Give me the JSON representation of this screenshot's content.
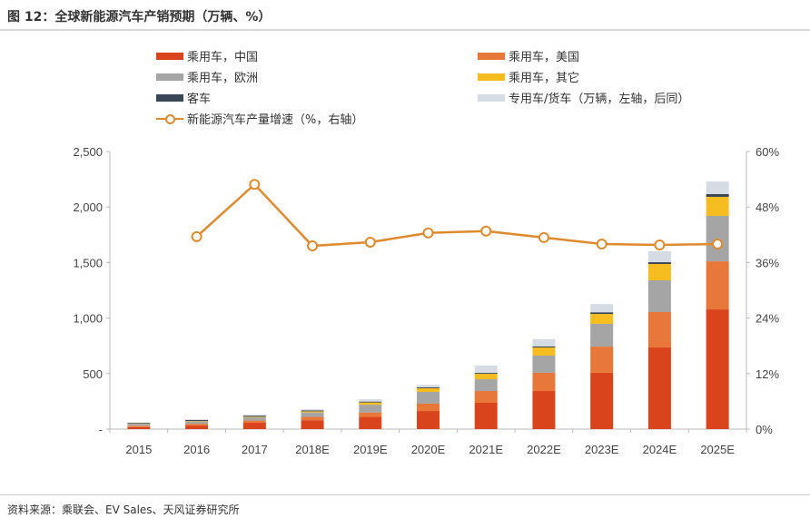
{
  "title": "图 12：全球新能源汽车产销预期（万辆、%）",
  "source": "资料来源：乘联会、EV Sales、天风证券研究所",
  "chart_data": {
    "type": "bar",
    "stacked": true,
    "categories": [
      "2015",
      "2016",
      "2017",
      "2018E",
      "2019E",
      "2020E",
      "2021E",
      "2022E",
      "2023E",
      "2024E",
      "2025E"
    ],
    "y_left": {
      "lim": [
        0,
        2500
      ],
      "ticks": [
        0,
        500,
        1000,
        1500,
        2000,
        2500
      ],
      "tick_labels": [
        "-",
        "500",
        "1,000",
        "1,500",
        "2,000",
        "2,500"
      ]
    },
    "y_right": {
      "lim": [
        0,
        60
      ],
      "ticks": [
        0,
        12,
        24,
        36,
        48,
        60
      ],
      "tick_labels": [
        "0%",
        "12%",
        "24%",
        "36%",
        "48%",
        "60%"
      ]
    },
    "grid": false,
    "legend_placement": "top",
    "series": [
      {
        "name": "乘用车，中国",
        "color": "#d9441c",
        "values": [
          18,
          32,
          57,
          80,
          110,
          163,
          237,
          343,
          507,
          735,
          1078
        ]
      },
      {
        "name": "乘用车，美国",
        "color": "#e8783a",
        "values": [
          12,
          16,
          20,
          30,
          40,
          66,
          106,
          164,
          236,
          319,
          433
        ]
      },
      {
        "name": "乘用车，欧洲",
        "color": "#a5a5a5",
        "values": [
          18,
          21,
          28,
          40,
          70,
          106,
          106,
          155,
          205,
          286,
          409
        ]
      },
      {
        "name": "乘用车，其它",
        "color": "#f5bd1f",
        "values": [
          3,
          4,
          6,
          10,
          20,
          33,
          49,
          73,
          89,
          147,
          172
        ]
      },
      {
        "name": "客车",
        "color": "#3a4555",
        "values": [
          6,
          10,
          10,
          8,
          8,
          8,
          8,
          10,
          15,
          16,
          24
        ]
      },
      {
        "name": "专用车/货车（万辆，左轴，后同）",
        "color": "#d6dce4",
        "values": [
          3,
          5,
          9,
          12,
          22,
          24,
          66,
          65,
          74,
          98,
          114
        ]
      }
    ],
    "line": {
      "name": "新能源汽车产量增速（%，右轴）",
      "color": "#e08a2e",
      "axis": "right",
      "values": [
        null,
        41.6,
        52.9,
        39.6,
        40.4,
        42.4,
        42.8,
        41.4,
        40.0,
        39.8,
        40.0
      ]
    }
  }
}
